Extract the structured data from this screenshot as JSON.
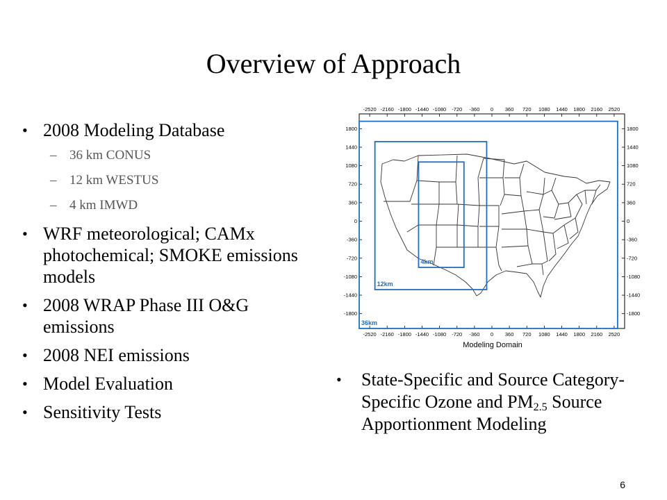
{
  "slide": {
    "title": "Overview of Approach",
    "bullets": [
      {
        "text": "2008 Modeling Database",
        "subs": [
          "36 km CONUS",
          "12 km WESTUS",
          "4 km IMWD"
        ]
      },
      {
        "text": "WRF meteorological; CAMx photochemical; SMOKE emissions models"
      },
      {
        "text": "2008 WRAP Phase III O&G emissions"
      },
      {
        "text": "2008 NEI emissions"
      },
      {
        "text": "Model Evaluation"
      },
      {
        "text": "Sensitivity Tests"
      }
    ],
    "right_bullet": {
      "part1": "State-Specific and Source Category-Specific Ozone and PM",
      "sub": "2.5",
      "part2": " Source Apportionment Modeling"
    },
    "page_number": "6",
    "bullet_glyph": "•",
    "dash_glyph": "–"
  },
  "map": {
    "caption": "Modeling Domain",
    "x_ticks": [
      "-2520",
      "-2160",
      "-1800",
      "-1440",
      "-1080",
      "-720",
      "-360",
      "0",
      "360",
      "720",
      "1080",
      "1440",
      "1800",
      "2160",
      "2520"
    ],
    "y_ticks": [
      "1800",
      "1440",
      "1080",
      "720",
      "360",
      "0",
      "-360",
      "-720",
      "-1080",
      "-1440",
      "-1800"
    ],
    "domains": [
      {
        "label": "36km",
        "x_range": [
          -2736,
          2592
        ],
        "y_range": [
          -2088,
          1944
        ]
      },
      {
        "label": "12km",
        "x_range": [
          -2412,
          -108
        ],
        "y_range": [
          -1332,
          1548
        ]
      },
      {
        "label": "4km",
        "x_range": [
          -1512,
          -576
        ],
        "y_range": [
          -900,
          1152
        ]
      }
    ],
    "domain_color": "#1f6fc5"
  }
}
